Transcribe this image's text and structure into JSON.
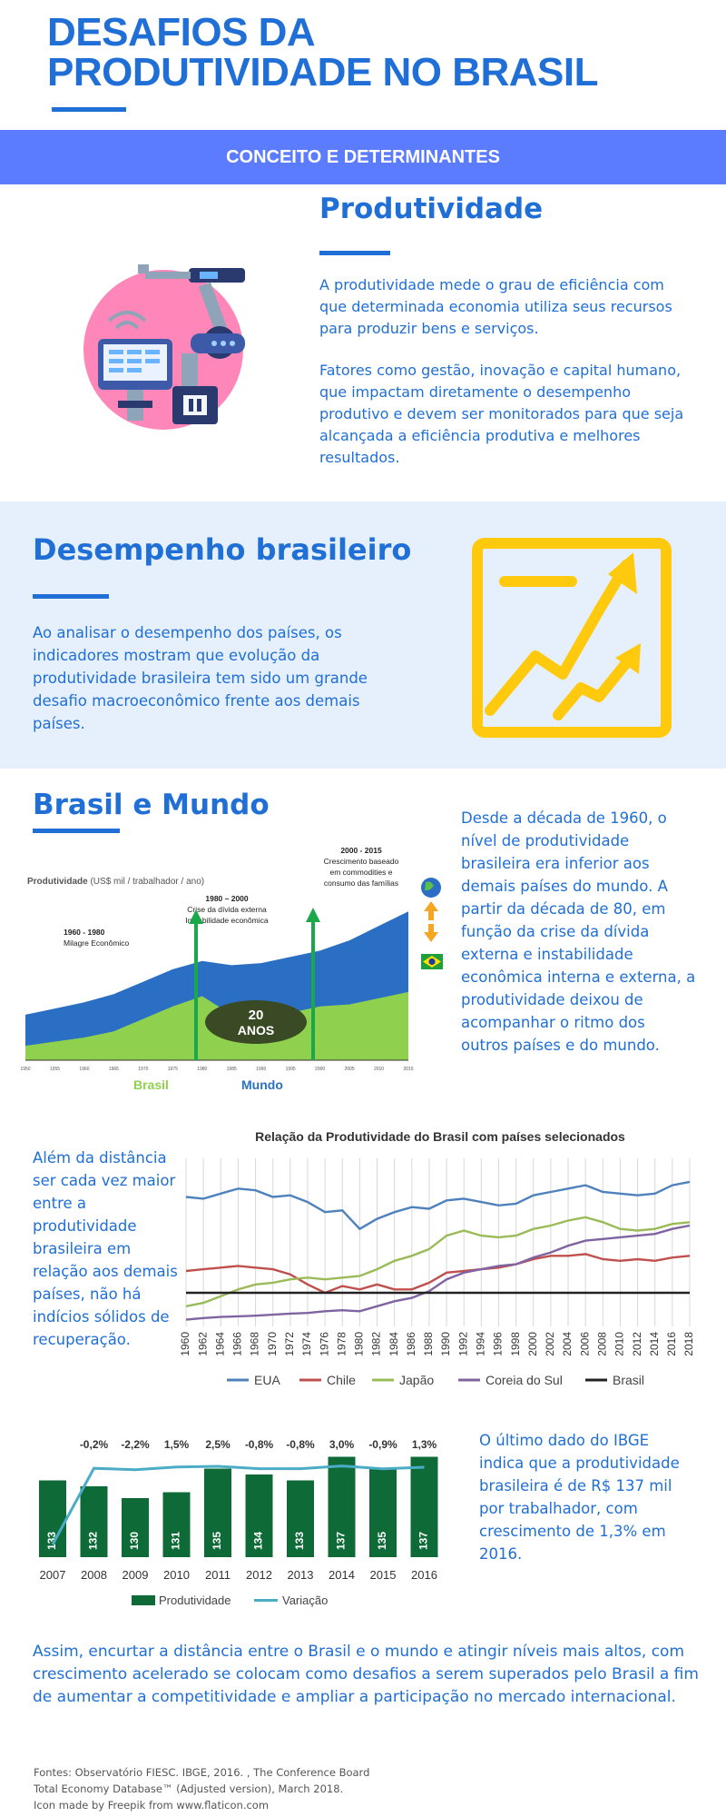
{
  "header": {
    "title_line1": "DESAFIOS DA",
    "title_line2": "PRODUTIVIDADE NO BRASIL",
    "banner": "CONCEITO E DETERMINANTES"
  },
  "produtividade": {
    "heading": "Produtividade",
    "p1": "A produtividade mede o grau de eficiência com que determinada economia utiliza seus recursos para produzir bens e serviços.",
    "p2": "Fatores como gestão, inovação e capital humano, que impactam diretamente o desempenho produtivo e devem ser monitorados para que seja alcançada a eficiência produtiva e melhores resultados.",
    "icon": "robot-arm-icon"
  },
  "desempenho": {
    "heading": "Desempenho brasileiro",
    "text": "Ao analisar o desempenho dos países, os indicadores mostram que evolução da produtividade brasileira tem sido um grande desafio macroeconômico frente aos demais países.",
    "icon": "growth-chart-icon"
  },
  "brasil_mundo": {
    "heading": "Brasil e Mundo",
    "text": "Desde a década de 1960, o nível de produtividade brasileira era inferior aos demais países do mundo.  A partir da década de 80, em função da crise da dívida externa e  instabilidade econômica interna e externa, a produtividade deixou de acompanhar o ritmo dos outros países e do mundo.",
    "chart_label": "Produtividade",
    "chart_unit": "(US$ mil / trabalhador / ano)",
    "ann1_title": "1960 - 1980",
    "ann1_text": "Milagre Econômico",
    "ann2_title": "1980 – 2000",
    "ann2_text1": "Crise da dívida externa",
    "ann2_text2": "Instabilidade econômica",
    "ann3_title": "2000 - 2015",
    "ann3_text1": "Crescimento baseado",
    "ann3_text2": "em commodities e",
    "ann3_text3": "consumo das famílias",
    "oval_num": "20",
    "oval_text": "ANOS",
    "legend_brasil": "Brasil",
    "legend_mundo": "Mundo",
    "colors": {
      "mundo": "#2a6fc4",
      "brasil": "#8fd14f",
      "arrow": "#1aa84a"
    }
  },
  "relacao": {
    "text": "Além da distância ser cada vez maior entre a produtividade brasileira em relação aos demais países, não há indícios sólidos de recuperação."
  },
  "ibge": {
    "text": "O último dado do IBGE indica que a produtividade brasileira é de R$ 137 mil por trabalhador, com crescimento de 1,3% em 2016."
  },
  "conclusao": {
    "text": "Assim, encurtar a distância entre o Brasil e o mundo e atingir níveis mais altos, com crescimento acelerado se colocam como desafios a serem superados pelo Brasil a fim de aumentar a competitividade e ampliar a participação no mercado internacional."
  },
  "footer": {
    "line1": "Fontes: Observatório FIESC. IBGE, 2016. , The Conference Board",
    "line2": "Total Economy Database™ (Adjusted version), March 2018.",
    "line3": "Icon made by Freepik from www.flaticon.com"
  },
  "chart_data": [
    {
      "type": "area",
      "ylabel": "Produtividade (US$ mil / trabalhador / ano)",
      "x": [
        1950,
        1955,
        1960,
        1965,
        1970,
        1975,
        1980,
        1985,
        1990,
        1995,
        2000,
        2005,
        2010,
        2015
      ],
      "series": [
        {
          "name": "Mundo",
          "values": [
            22,
            25,
            28,
            32,
            38,
            44,
            48,
            46,
            47,
            50,
            53,
            58,
            65,
            72
          ]
        },
        {
          "name": "Brasil",
          "values": [
            7,
            9,
            11,
            14,
            20,
            26,
            31,
            22,
            23,
            23,
            26,
            27,
            30,
            33
          ]
        }
      ]
    },
    {
      "type": "line",
      "title": "Relação da Produtividade do Brasil com países selecionados",
      "x": [
        1960,
        1962,
        1964,
        1966,
        1968,
        1970,
        1972,
        1974,
        1976,
        1978,
        1980,
        1982,
        1984,
        1986,
        1988,
        1990,
        1992,
        1994,
        1996,
        1998,
        2000,
        2002,
        2004,
        2006,
        2008,
        2010,
        2012,
        2014,
        2016,
        2018
      ],
      "ylim": [
        0,
        5
      ],
      "series": [
        {
          "name": "EUA",
          "color": "#4f81bd",
          "values": [
            3.85,
            3.8,
            3.95,
            4.1,
            4.05,
            3.85,
            3.9,
            3.7,
            3.4,
            3.45,
            2.9,
            3.2,
            3.4,
            3.55,
            3.5,
            3.75,
            3.8,
            3.7,
            3.6,
            3.65,
            3.9,
            4.0,
            4.1,
            4.2,
            4.0,
            3.95,
            3.9,
            3.95,
            4.2,
            4.3
          ]
        },
        {
          "name": "Chile",
          "color": "#c0504d",
          "values": [
            1.65,
            1.7,
            1.75,
            1.8,
            1.75,
            1.7,
            1.55,
            1.25,
            1.0,
            1.2,
            1.1,
            1.25,
            1.1,
            1.1,
            1.3,
            1.6,
            1.65,
            1.7,
            1.75,
            1.85,
            2.0,
            2.1,
            2.1,
            2.15,
            2.0,
            1.95,
            2.0,
            1.95,
            2.05,
            2.1
          ]
        },
        {
          "name": "Japão",
          "color": "#9bbb59",
          "values": [
            0.6,
            0.7,
            0.9,
            1.1,
            1.25,
            1.3,
            1.4,
            1.45,
            1.4,
            1.45,
            1.5,
            1.7,
            1.95,
            2.1,
            2.3,
            2.7,
            2.85,
            2.7,
            2.65,
            2.7,
            2.9,
            3.0,
            3.15,
            3.25,
            3.1,
            2.9,
            2.85,
            2.9,
            3.05,
            3.1
          ]
        },
        {
          "name": "Coreia do Sul",
          "color": "#8064a2",
          "values": [
            0.2,
            0.25,
            0.28,
            0.3,
            0.32,
            0.35,
            0.38,
            0.4,
            0.45,
            0.48,
            0.45,
            0.6,
            0.75,
            0.85,
            1.05,
            1.4,
            1.6,
            1.7,
            1.8,
            1.85,
            2.05,
            2.2,
            2.4,
            2.55,
            2.6,
            2.65,
            2.7,
            2.75,
            2.9,
            3.0
          ]
        },
        {
          "name": "Brasil",
          "color": "#222222",
          "values": [
            1,
            1,
            1,
            1,
            1,
            1,
            1,
            1,
            1,
            1,
            1,
            1,
            1,
            1,
            1,
            1,
            1,
            1,
            1,
            1,
            1,
            1,
            1,
            1,
            1,
            1,
            1,
            1,
            1,
            1
          ]
        }
      ]
    },
    {
      "type": "bar",
      "categories": [
        "2007",
        "2008",
        "2009",
        "2010",
        "2011",
        "2012",
        "2013",
        "2014",
        "2015",
        "2016"
      ],
      "series": [
        {
          "name": "Produtividade",
          "values": [
            133,
            132,
            130,
            131,
            135,
            134,
            133,
            137,
            135,
            137
          ]
        },
        {
          "name": "Variação",
          "values": [
            null,
            -0.2,
            -2.2,
            1.5,
            2.5,
            -0.8,
            -0.8,
            3.0,
            -0.9,
            1.3
          ]
        }
      ],
      "bar_labels": [
        "133",
        "132",
        "130",
        "131",
        "135",
        "134",
        "133",
        "137",
        "135",
        "137"
      ],
      "variation_labels": [
        "",
        "-0,2%",
        "-2,2%",
        "1,5%",
        "2,5%",
        "-0,8%",
        "-0,8%",
        "3,0%",
        "-0,9%",
        "1,3%"
      ],
      "legend": [
        "Produtividade",
        "Variação"
      ],
      "colors": {
        "bar": "#0e6b37",
        "line": "#4bacc6"
      }
    }
  ]
}
